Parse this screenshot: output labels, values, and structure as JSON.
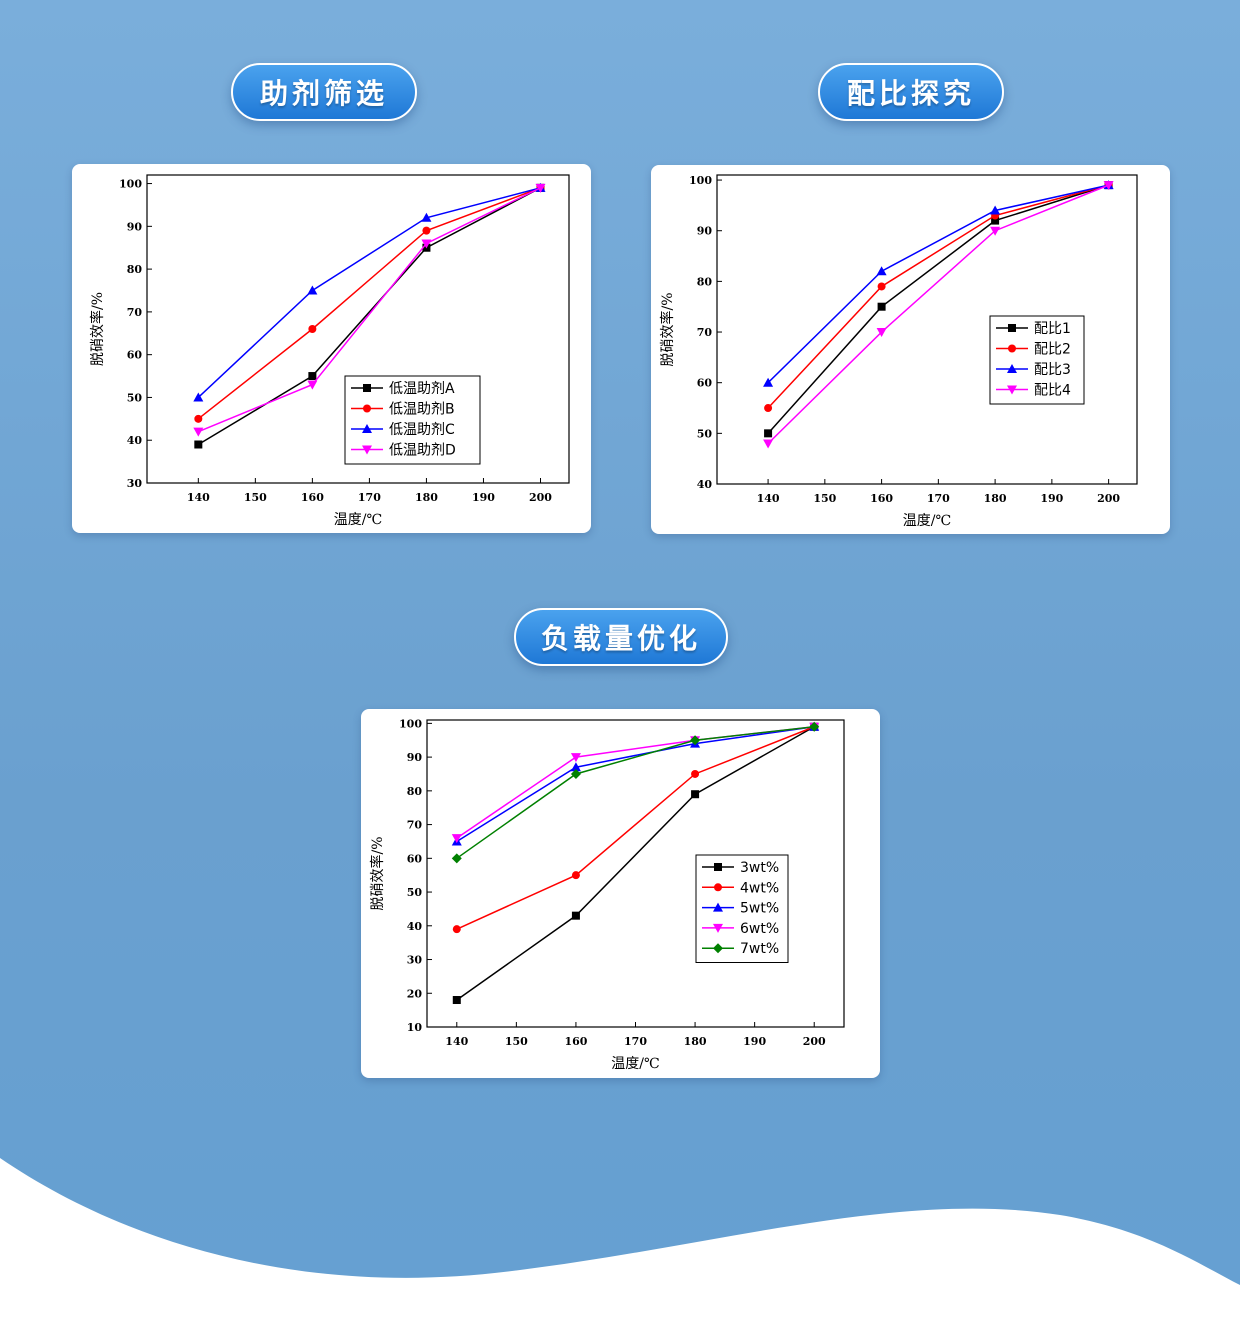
{
  "sections": [
    {
      "title": "助剂筛选"
    },
    {
      "title": "配比探究"
    },
    {
      "title": "负载量优化"
    }
  ],
  "chart_data": [
    {
      "type": "line",
      "xlabel": "温度/℃",
      "ylabel": "脱硝效率/%",
      "x": [
        140,
        160,
        180,
        200
      ],
      "xlim": [
        131,
        205
      ],
      "ylim": [
        30,
        102
      ],
      "xticks": [
        140,
        150,
        160,
        170,
        180,
        190,
        200
      ],
      "yticks": [
        30,
        40,
        50,
        60,
        70,
        80,
        90,
        100
      ],
      "legend_position": "bottom-right",
      "grid": false,
      "series": [
        {
          "name": "低温助剂A",
          "color": "#000000",
          "marker": "square",
          "values": [
            39,
            55,
            85,
            99
          ]
        },
        {
          "name": "低温助剂B",
          "color": "#ff0000",
          "marker": "circle",
          "values": [
            45,
            66,
            89,
            99
          ]
        },
        {
          "name": "低温助剂C",
          "color": "#0000ff",
          "marker": "triangle-up",
          "values": [
            50,
            75,
            92,
            99
          ]
        },
        {
          "name": "低温助剂D",
          "color": "#ff00ff",
          "marker": "triangle-down",
          "values": [
            42,
            53,
            86,
            99
          ]
        }
      ]
    },
    {
      "type": "line",
      "xlabel": "温度/℃",
      "ylabel": "脱硝效率/%",
      "x": [
        140,
        160,
        180,
        200
      ],
      "xlim": [
        131,
        205
      ],
      "ylim": [
        40,
        101
      ],
      "xticks": [
        140,
        150,
        160,
        170,
        180,
        190,
        200
      ],
      "yticks": [
        40,
        50,
        60,
        70,
        80,
        90,
        100
      ],
      "legend_position": "center-right",
      "grid": false,
      "series": [
        {
          "name": "配比1",
          "color": "#000000",
          "marker": "square",
          "values": [
            50,
            75,
            92,
            99
          ]
        },
        {
          "name": "配比2",
          "color": "#ff0000",
          "marker": "circle",
          "values": [
            55,
            79,
            93,
            99
          ]
        },
        {
          "name": "配比3",
          "color": "#0000ff",
          "marker": "triangle-up",
          "values": [
            60,
            82,
            94,
            99
          ]
        },
        {
          "name": "配比4",
          "color": "#ff00ff",
          "marker": "triangle-down",
          "values": [
            48,
            70,
            90,
            99
          ]
        }
      ]
    },
    {
      "type": "line",
      "xlabel": "温度/℃",
      "ylabel": "脱硝效率/%",
      "x": [
        140,
        160,
        180,
        200
      ],
      "xlim": [
        135,
        205
      ],
      "ylim": [
        10,
        101
      ],
      "xticks": [
        140,
        150,
        160,
        170,
        180,
        190,
        200
      ],
      "yticks": [
        10,
        20,
        30,
        40,
        50,
        60,
        70,
        80,
        90,
        100
      ],
      "legend_position": "center-right",
      "grid": false,
      "series": [
        {
          "name": "3wt%",
          "color": "#000000",
          "marker": "square",
          "values": [
            18,
            43,
            79,
            99
          ]
        },
        {
          "name": "4wt%",
          "color": "#ff0000",
          "marker": "circle",
          "values": [
            39,
            55,
            85,
            99
          ]
        },
        {
          "name": "5wt%",
          "color": "#0000ff",
          "marker": "triangle-up",
          "values": [
            65,
            87,
            94,
            99
          ]
        },
        {
          "name": "6wt%",
          "color": "#ff00ff",
          "marker": "triangle-down",
          "values": [
            66,
            90,
            95,
            99
          ]
        },
        {
          "name": "7wt%",
          "color": "#008000",
          "marker": "diamond",
          "values": [
            60,
            85,
            95,
            99
          ]
        }
      ]
    }
  ]
}
